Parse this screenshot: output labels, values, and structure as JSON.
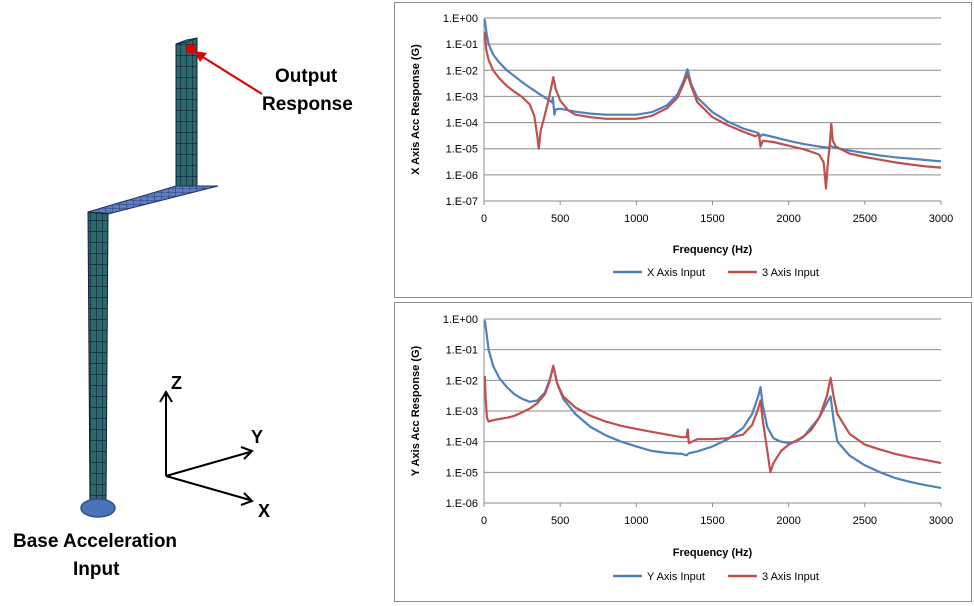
{
  "diagram": {
    "output_label_line1": "Output",
    "output_label_line2": "Response",
    "base_label_line1": "Base Acceleration",
    "base_label_line2": "Input",
    "axis_x": "X",
    "axis_y": "Y",
    "axis_z": "Z",
    "mesh_color": "#2f6e6e",
    "marker_color": "#e00000"
  },
  "chart_data": [
    {
      "type": "line",
      "xlabel": "Frequency (Hz)",
      "ylabel": "X Axis Acc Response (G)",
      "xlim": [
        0,
        3000
      ],
      "ylim": [
        1e-07,
        1
      ],
      "yscale": "log",
      "xticks": [
        "0",
        "500",
        "1000",
        "1500",
        "2000",
        "2500",
        "3000"
      ],
      "yticks": [
        "1.E+00",
        "1.E-01",
        "1.E-02",
        "1.E-03",
        "1.E-04",
        "1.E-05",
        "1.E-06",
        "1.E-07"
      ],
      "grid": "horizontal",
      "legend": "bottom",
      "series": [
        {
          "name": "X Axis Input",
          "color": "#4f81bd",
          "points": [
            [
              5,
              0.9
            ],
            [
              15,
              0.3
            ],
            [
              30,
              0.1
            ],
            [
              60,
              0.04
            ],
            [
              100,
              0.02
            ],
            [
              150,
              0.01
            ],
            [
              200,
              0.006
            ],
            [
              250,
              0.0035
            ],
            [
              300,
              0.0022
            ],
            [
              350,
              0.0014
            ],
            [
              400,
              0.0009
            ],
            [
              430,
              0.0007
            ],
            [
              445,
              0.0006
            ],
            [
              452,
              0.0009
            ],
            [
              458,
              0.00035
            ],
            [
              462,
              0.0002
            ],
            [
              470,
              0.00032
            ],
            [
              500,
              0.00034
            ],
            [
              600,
              0.00026
            ],
            [
              700,
              0.00022
            ],
            [
              800,
              0.0002
            ],
            [
              900,
              0.0002
            ],
            [
              1000,
              0.0002
            ],
            [
              1100,
              0.00025
            ],
            [
              1200,
              0.00045
            ],
            [
              1270,
              0.0012
            ],
            [
              1310,
              0.004
            ],
            [
              1335,
              0.011
            ],
            [
              1360,
              0.003
            ],
            [
              1400,
              0.0009
            ],
            [
              1500,
              0.00025
            ],
            [
              1600,
              0.00011
            ],
            [
              1700,
              6e-05
            ],
            [
              1800,
              4e-05
            ],
            [
              1815,
              3e-05
            ],
            [
              1830,
              3.5e-05
            ],
            [
              1900,
              2.8e-05
            ],
            [
              2000,
              2e-05
            ],
            [
              2100,
              1.5e-05
            ],
            [
              2200,
              1.2e-05
            ],
            [
              2260,
              1.1e-05
            ],
            [
              2275,
              1.3e-05
            ],
            [
              2290,
              1.15e-05
            ],
            [
              2400,
              8.5e-06
            ],
            [
              2500,
              6.8e-06
            ],
            [
              2600,
              5.5e-06
            ],
            [
              2700,
              4.7e-06
            ],
            [
              2800,
              4.2e-06
            ],
            [
              2900,
              3.7e-06
            ],
            [
              3000,
              3.3e-06
            ]
          ]
        },
        {
          "name": "3 Axis Input",
          "color": "#c0504d",
          "points": [
            [
              5,
              0.3
            ],
            [
              15,
              0.06
            ],
            [
              30,
              0.025
            ],
            [
              60,
              0.01
            ],
            [
              100,
              0.005
            ],
            [
              150,
              0.0025
            ],
            [
              200,
              0.0015
            ],
            [
              250,
              0.00095
            ],
            [
              300,
              0.0005
            ],
            [
              330,
              0.00018
            ],
            [
              350,
              3e-05
            ],
            [
              360,
              1e-05
            ],
            [
              372,
              5e-05
            ],
            [
              400,
              0.0002
            ],
            [
              420,
              0.0006
            ],
            [
              440,
              0.002
            ],
            [
              455,
              0.0055
            ],
            [
              470,
              0.002
            ],
            [
              500,
              0.0007
            ],
            [
              550,
              0.0003
            ],
            [
              600,
              0.0002
            ],
            [
              700,
              0.00016
            ],
            [
              800,
              0.00014
            ],
            [
              900,
              0.00014
            ],
            [
              1000,
              0.00014
            ],
            [
              1100,
              0.00018
            ],
            [
              1200,
              0.00035
            ],
            [
              1270,
              0.0009
            ],
            [
              1310,
              0.003
            ],
            [
              1335,
              0.007
            ],
            [
              1360,
              0.0025
            ],
            [
              1400,
              0.0006
            ],
            [
              1500,
              0.00016
            ],
            [
              1600,
              8e-05
            ],
            [
              1700,
              4.5e-05
            ],
            [
              1780,
              3e-05
            ],
            [
              1805,
              3.5e-05
            ],
            [
              1815,
              1.2e-05
            ],
            [
              1830,
              2e-05
            ],
            [
              1900,
              1.8e-05
            ],
            [
              2000,
              1.3e-05
            ],
            [
              2100,
              9.5e-06
            ],
            [
              2200,
              6e-06
            ],
            [
              2230,
              3e-06
            ],
            [
              2245,
              3e-07
            ],
            [
              2255,
              2e-06
            ],
            [
              2270,
              1.5e-05
            ],
            [
              2280,
              9e-05
            ],
            [
              2290,
              2e-05
            ],
            [
              2310,
              1.2e-05
            ],
            [
              2400,
              6.5e-06
            ],
            [
              2500,
              4.8e-06
            ],
            [
              2600,
              3.8e-06
            ],
            [
              2700,
              3e-06
            ],
            [
              2800,
              2.5e-06
            ],
            [
              2900,
              2.1e-06
            ],
            [
              3000,
              1.9e-06
            ]
          ]
        }
      ]
    },
    {
      "type": "line",
      "xlabel": "Frequency (Hz)",
      "ylabel": "Y Axis Acc Response (G)",
      "xlim": [
        0,
        3000
      ],
      "ylim": [
        1e-06,
        1
      ],
      "yscale": "log",
      "xticks": [
        "0",
        "500",
        "1000",
        "1500",
        "2000",
        "2500",
        "3000"
      ],
      "yticks": [
        "1.E+00",
        "1.E-01",
        "1.E-02",
        "1.E-03",
        "1.E-04",
        "1.E-05",
        "1.E-06"
      ],
      "grid": "horizontal",
      "legend": "bottom",
      "series": [
        {
          "name": "Y Axis Input",
          "color": "#4f81bd",
          "points": [
            [
              5,
              0.9
            ],
            [
              15,
              0.4
            ],
            [
              30,
              0.1
            ],
            [
              60,
              0.03
            ],
            [
              100,
              0.012
            ],
            [
              150,
              0.006
            ],
            [
              200,
              0.0035
            ],
            [
              250,
              0.0025
            ],
            [
              300,
              0.002
            ],
            [
              350,
              0.0022
            ],
            [
              400,
              0.004
            ],
            [
              430,
              0.01
            ],
            [
              455,
              0.028
            ],
            [
              480,
              0.008
            ],
            [
              520,
              0.0025
            ],
            [
              600,
              0.0008
            ],
            [
              700,
              0.0003
            ],
            [
              800,
              0.00016
            ],
            [
              900,
              0.0001
            ],
            [
              1000,
              7e-05
            ],
            [
              1100,
              5e-05
            ],
            [
              1200,
              4.3e-05
            ],
            [
              1300,
              4e-05
            ],
            [
              1330,
              3.6e-05
            ],
            [
              1345,
              4.2e-05
            ],
            [
              1400,
              4.8e-05
            ],
            [
              1500,
              7e-05
            ],
            [
              1600,
              0.00012
            ],
            [
              1700,
              0.00028
            ],
            [
              1760,
              0.0008
            ],
            [
              1800,
              0.003
            ],
            [
              1815,
              0.006
            ],
            [
              1830,
              0.0015
            ],
            [
              1860,
              0.0003
            ],
            [
              1900,
              0.00013
            ],
            [
              1950,
              0.0001
            ],
            [
              2000,
              9e-05
            ],
            [
              2050,
              0.0001
            ],
            [
              2100,
              0.00015
            ],
            [
              2150,
              0.0003
            ],
            [
              2200,
              0.0006
            ],
            [
              2250,
              0.0018
            ],
            [
              2275,
              0.003
            ],
            [
              2295,
              0.0005
            ],
            [
              2320,
              0.0001
            ],
            [
              2400,
              3.5e-05
            ],
            [
              2500,
              1.7e-05
            ],
            [
              2600,
              1e-05
            ],
            [
              2700,
              6.5e-06
            ],
            [
              2800,
              4.8e-06
            ],
            [
              2900,
              3.8e-06
            ],
            [
              3000,
              3.1e-06
            ]
          ]
        },
        {
          "name": "3 Axis Input",
          "color": "#c0504d",
          "points": [
            [
              5,
              0.014
            ],
            [
              12,
              0.002
            ],
            [
              20,
              0.0006
            ],
            [
              30,
              0.00045
            ],
            [
              60,
              0.0005
            ],
            [
              100,
              0.00055
            ],
            [
              150,
              0.0006
            ],
            [
              200,
              0.0007
            ],
            [
              250,
              0.0009
            ],
            [
              300,
              0.0012
            ],
            [
              350,
              0.0018
            ],
            [
              400,
              0.0035
            ],
            [
              430,
              0.009
            ],
            [
              455,
              0.03
            ],
            [
              480,
              0.008
            ],
            [
              520,
              0.003
            ],
            [
              600,
              0.0013
            ],
            [
              700,
              0.0007
            ],
            [
              800,
              0.00045
            ],
            [
              900,
              0.00033
            ],
            [
              1000,
              0.00026
            ],
            [
              1100,
              0.00021
            ],
            [
              1200,
              0.00017
            ],
            [
              1300,
              0.00014
            ],
            [
              1330,
              0.00014
            ],
            [
              1338,
              0.00025
            ],
            [
              1345,
              9e-05
            ],
            [
              1400,
              0.00012
            ],
            [
              1500,
              0.00012
            ],
            [
              1600,
              0.00013
            ],
            [
              1700,
              0.00017
            ],
            [
              1760,
              0.00035
            ],
            [
              1800,
              0.0012
            ],
            [
              1815,
              0.0022
            ],
            [
              1830,
              0.0005
            ],
            [
              1860,
              5e-05
            ],
            [
              1880,
              1e-05
            ],
            [
              1900,
              2e-05
            ],
            [
              1950,
              5e-05
            ],
            [
              2000,
              8e-05
            ],
            [
              2100,
              0.00015
            ],
            [
              2150,
              0.00025
            ],
            [
              2200,
              0.0006
            ],
            [
              2250,
              0.003
            ],
            [
              2275,
              0.012
            ],
            [
              2295,
              0.003
            ],
            [
              2320,
              0.0008
            ],
            [
              2400,
              0.00018
            ],
            [
              2500,
              8e-05
            ],
            [
              2600,
              5.5e-05
            ],
            [
              2700,
              4e-05
            ],
            [
              2800,
              3.1e-05
            ],
            [
              2900,
              2.5e-05
            ],
            [
              3000,
              2e-05
            ]
          ]
        }
      ]
    }
  ]
}
